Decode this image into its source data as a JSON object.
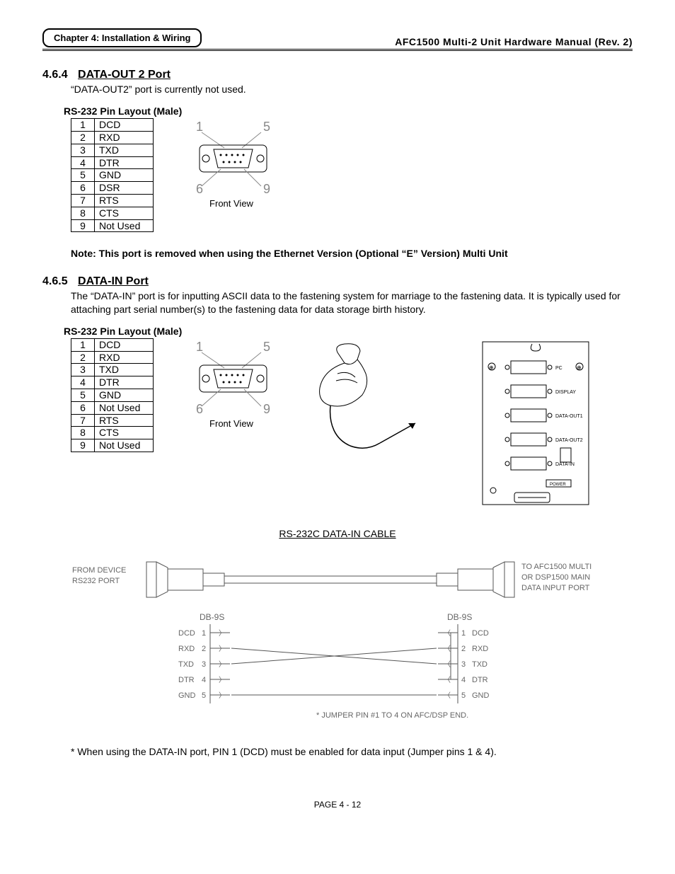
{
  "header": {
    "chapter_tag": "Chapter 4: Installation & Wiring",
    "manual_title": "AFC1500 Multi-2 Unit Hardware Manual (Rev. 2)"
  },
  "section_464": {
    "number": "4.6.4",
    "title": "DATA-OUT 2 Port",
    "body": "“DATA-OUT2” port is currently not used.",
    "table_heading": "RS-232 Pin Layout (Male)",
    "pins": [
      {
        "n": "1",
        "sig": "DCD"
      },
      {
        "n": "2",
        "sig": "RXD"
      },
      {
        "n": "3",
        "sig": "TXD"
      },
      {
        "n": "4",
        "sig": "DTR"
      },
      {
        "n": "5",
        "sig": "GND"
      },
      {
        "n": "6",
        "sig": "DSR"
      },
      {
        "n": "7",
        "sig": "RTS"
      },
      {
        "n": "8",
        "sig": "CTS"
      },
      {
        "n": "9",
        "sig": "Not Used"
      }
    ],
    "connector_caption": "Front View",
    "connector_corners": {
      "tl": "1",
      "tr": "5",
      "bl": "6",
      "br": "9"
    },
    "note": "Note: This port is removed when using the Ethernet Version (Optional “E” Version) Multi Unit"
  },
  "section_465": {
    "number": "4.6.5",
    "title": "DATA-IN Port",
    "body": "The “DATA-IN” port is for inputting ASCII data to the fastening system for marriage to the fastening data. It is typically used for attaching part serial number(s) to the fastening data for data storage birth history.",
    "table_heading": "RS-232 Pin Layout (Male)",
    "pins": [
      {
        "n": "1",
        "sig": "DCD"
      },
      {
        "n": "2",
        "sig": "RXD"
      },
      {
        "n": "3",
        "sig": "TXD"
      },
      {
        "n": "4",
        "sig": "DTR"
      },
      {
        "n": "5",
        "sig": "GND"
      },
      {
        "n": "6",
        "sig": "Not Used"
      },
      {
        "n": "7",
        "sig": "RTS"
      },
      {
        "n": "8",
        "sig": "CTS"
      },
      {
        "n": "9",
        "sig": "Not Used"
      }
    ],
    "connector_caption": "Front View",
    "connector_corners": {
      "tl": "1",
      "tr": "5",
      "bl": "6",
      "br": "9"
    },
    "panel_ports": [
      "PC",
      "DISPLAY",
      "DATA-OUT1",
      "DATA-OUT2",
      "DATA-IN"
    ],
    "panel_bottom": "POWER"
  },
  "cable_diagram": {
    "title": "RS-232C DATA-IN CABLE",
    "left_label_1": "FROM DEVICE",
    "left_label_2": "RS232 PORT",
    "right_label_1": "TO AFC1500 MULTI",
    "right_label_2": "OR DSP1500 MAIN",
    "right_label_3": "DATA INPUT PORT",
    "conn_label": "DB-9S",
    "left_pins": [
      {
        "n": "1",
        "sig": "DCD"
      },
      {
        "n": "2",
        "sig": "RXD"
      },
      {
        "n": "3",
        "sig": "TXD"
      },
      {
        "n": "4",
        "sig": "DTR"
      },
      {
        "n": "5",
        "sig": "GND"
      }
    ],
    "right_pins": [
      {
        "n": "1",
        "sig": "DCD"
      },
      {
        "n": "2",
        "sig": "RXD"
      },
      {
        "n": "3",
        "sig": "TXD"
      },
      {
        "n": "4",
        "sig": "DTR"
      },
      {
        "n": "5",
        "sig": "GND"
      }
    ],
    "jumper_note": "* JUMPER PIN #1 TO 4 ON AFC/DSP END."
  },
  "footnote": "* When using the DATA-IN port, PIN 1 (DCD) must be enabled for data input (Jumper pins 1 & 4).",
  "page_number": "PAGE 4 - 12",
  "colors": {
    "text": "#000000",
    "bg": "#ffffff",
    "rule": "#000000",
    "diagram_stroke": "#555555"
  }
}
